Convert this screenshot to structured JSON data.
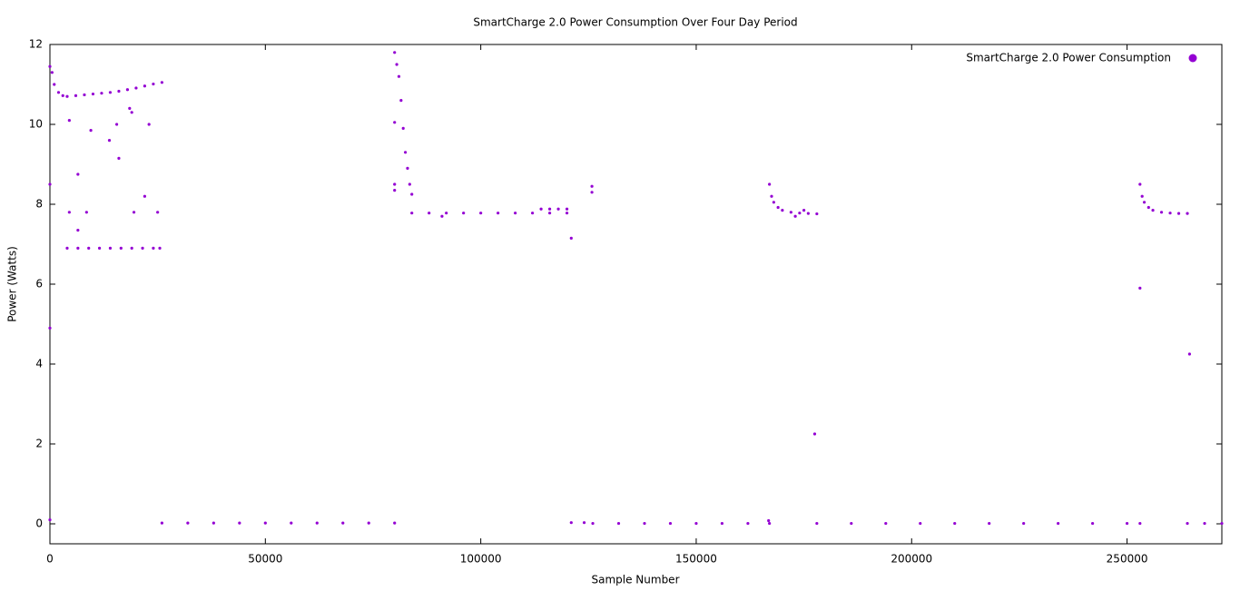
{
  "chart_data": {
    "type": "scatter",
    "title": "SmartCharge 2.0 Power Consumption Over Four Day Period",
    "x_label": "Sample Number",
    "y_label": "Power (Watts)",
    "xlim": [
      0,
      272000
    ],
    "ylim": [
      -0.5,
      12
    ],
    "xticks": [
      0,
      50000,
      100000,
      150000,
      200000,
      250000
    ],
    "yticks": [
      0,
      2,
      4,
      6,
      8,
      10,
      12
    ],
    "legend": "top right",
    "x": [
      0,
      500,
      1000,
      2000,
      3000,
      4000,
      6000,
      8000,
      10000,
      12000,
      14000,
      16000,
      18000,
      20000,
      22000,
      24000,
      26000,
      4000,
      6500,
      9000,
      11500,
      14000,
      16500,
      19000,
      21500,
      24000,
      25500,
      4500,
      9500,
      13800,
      15500,
      16000,
      18500,
      19000,
      6500,
      4500,
      8500,
      22000,
      23000,
      25000,
      6500,
      19500,
      0,
      0,
      0,
      26000,
      32000,
      38000,
      44000,
      50000,
      56000,
      62000,
      68000,
      74000,
      80000,
      80000,
      80500,
      81000,
      81500,
      82000,
      82500,
      83000,
      83500,
      84000,
      84000,
      88000,
      92000,
      96000,
      100000,
      104000,
      108000,
      112000,
      116000,
      120000,
      114000,
      116000,
      118000,
      120000,
      80000,
      80000,
      80000,
      121000,
      125800,
      125800,
      91000,
      121000,
      124000,
      126000,
      132000,
      138000,
      144000,
      150000,
      156000,
      162000,
      167000,
      166800,
      167000,
      167500,
      168000,
      169000,
      170000,
      172000,
      174000,
      176000,
      178000,
      177500,
      173000,
      175000,
      178000,
      186000,
      194000,
      202000,
      210000,
      218000,
      226000,
      234000,
      242000,
      250000,
      253000,
      253000,
      253500,
      254000,
      255000,
      256000,
      258000,
      260000,
      262000,
      264000,
      253000,
      264500,
      264000,
      268000,
      272000
    ],
    "series": [
      {
        "name": "SmartCharge 2.0 Power Consumption",
        "color": "#9400d3",
        "values": [
          11.45,
          11.3,
          11.0,
          10.8,
          10.72,
          10.7,
          10.72,
          10.74,
          10.76,
          10.78,
          10.8,
          10.83,
          10.87,
          10.91,
          10.96,
          11.01,
          11.05,
          6.9,
          6.9,
          6.9,
          6.9,
          6.9,
          6.9,
          6.9,
          6.9,
          6.9,
          6.9,
          10.1,
          9.85,
          9.6,
          10.0,
          9.15,
          10.4,
          10.3,
          8.75,
          7.8,
          7.8,
          8.2,
          10.0,
          7.8,
          7.35,
          7.8,
          8.5,
          4.9,
          0.1,
          0.02,
          0.02,
          0.02,
          0.02,
          0.02,
          0.02,
          0.02,
          0.02,
          0.02,
          0.02,
          11.8,
          11.5,
          11.2,
          10.6,
          9.9,
          9.3,
          8.9,
          8.5,
          8.25,
          7.78,
          7.78,
          7.78,
          7.78,
          7.78,
          7.78,
          7.78,
          7.78,
          7.78,
          7.78,
          7.88,
          7.88,
          7.88,
          7.88,
          10.05,
          8.5,
          8.35,
          7.15,
          8.45,
          8.3,
          7.7,
          0.03,
          0.03,
          0.01,
          0.01,
          0.01,
          0.01,
          0.01,
          0.01,
          0.01,
          0.01,
          0.08,
          8.5,
          8.2,
          8.05,
          7.92,
          7.85,
          7.8,
          7.78,
          7.77,
          7.76,
          2.25,
          7.7,
          7.85,
          0.01,
          0.01,
          0.01,
          0.01,
          0.01,
          0.01,
          0.01,
          0.01,
          0.01,
          0.01,
          0.01,
          8.5,
          8.2,
          8.05,
          7.92,
          7.85,
          7.8,
          7.78,
          7.77,
          7.77,
          5.9,
          4.25,
          0.01,
          0.01,
          0.01
        ]
      }
    ]
  }
}
